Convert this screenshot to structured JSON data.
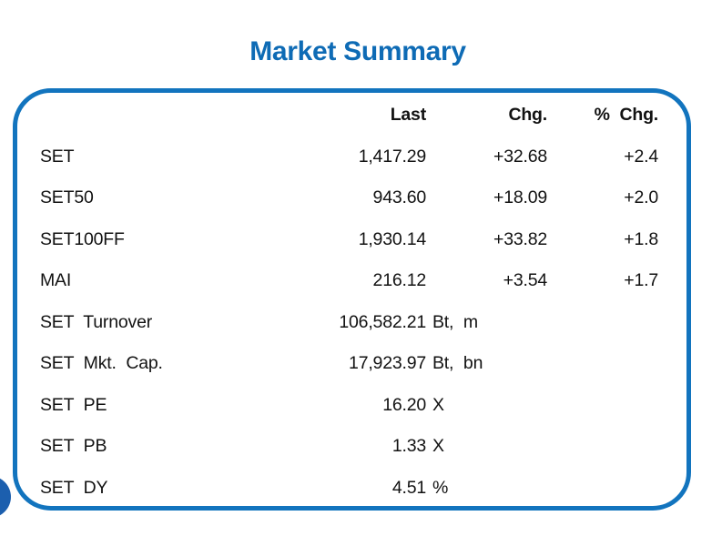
{
  "title": "Market Summary",
  "colors": {
    "title_blue": "#0E6BB5",
    "border_blue": "#1274BE",
    "circle_blue": "#1C5FAE",
    "text": "#121212"
  },
  "table": {
    "headers": {
      "last": "Last",
      "chg": "Chg.",
      "pct_chg": "% Chg."
    },
    "rows": [
      {
        "label": "SET",
        "last": "1,417.29",
        "unit": "",
        "chg": "+32.68",
        "pct_chg": "+2.4"
      },
      {
        "label": "SET50",
        "last": "943.60",
        "unit": "",
        "chg": "+18.09",
        "pct_chg": "+2.0"
      },
      {
        "label": "SET100FF",
        "last": "1,930.14",
        "unit": "",
        "chg": "+33.82",
        "pct_chg": "+1.8"
      },
      {
        "label": "MAI",
        "last": "216.12",
        "unit": "",
        "chg": "+3.54",
        "pct_chg": "+1.7"
      },
      {
        "label": "SET Turnover",
        "last": "106,582.21",
        "unit": "Bt, m",
        "chg": "",
        "pct_chg": ""
      },
      {
        "label": "SET Mkt. Cap.",
        "last": "17,923.97",
        "unit": "Bt, bn",
        "chg": "",
        "pct_chg": ""
      },
      {
        "label": "SET PE",
        "last": "16.20",
        "unit": "X",
        "chg": "",
        "pct_chg": ""
      },
      {
        "label": "SET PB",
        "last": "1.33",
        "unit": "X",
        "chg": "",
        "pct_chg": ""
      },
      {
        "label": "SET DY",
        "last": "4.51",
        "unit": "%",
        "chg": "",
        "pct_chg": ""
      }
    ]
  },
  "chart_data": {
    "type": "table",
    "title": "Market Summary",
    "columns": [
      "",
      "Last",
      "Chg.",
      "% Chg."
    ],
    "rows": [
      [
        "SET",
        "1,417.29",
        "+32.68",
        "+2.4"
      ],
      [
        "SET50",
        "943.60",
        "+18.09",
        "+2.0"
      ],
      [
        "SET100FF",
        "1,930.14",
        "+33.82",
        "+1.8"
      ],
      [
        "MAI",
        "216.12",
        "+3.54",
        "+1.7"
      ],
      [
        "SET Turnover",
        "106,582.21 Bt, m",
        "",
        ""
      ],
      [
        "SET Mkt. Cap.",
        "17,923.97 Bt, bn",
        "",
        ""
      ],
      [
        "SET PE",
        "16.20 X",
        "",
        ""
      ],
      [
        "SET PB",
        "1.33 X",
        "",
        ""
      ],
      [
        "SET DY",
        "4.51 %",
        "",
        ""
      ]
    ]
  }
}
